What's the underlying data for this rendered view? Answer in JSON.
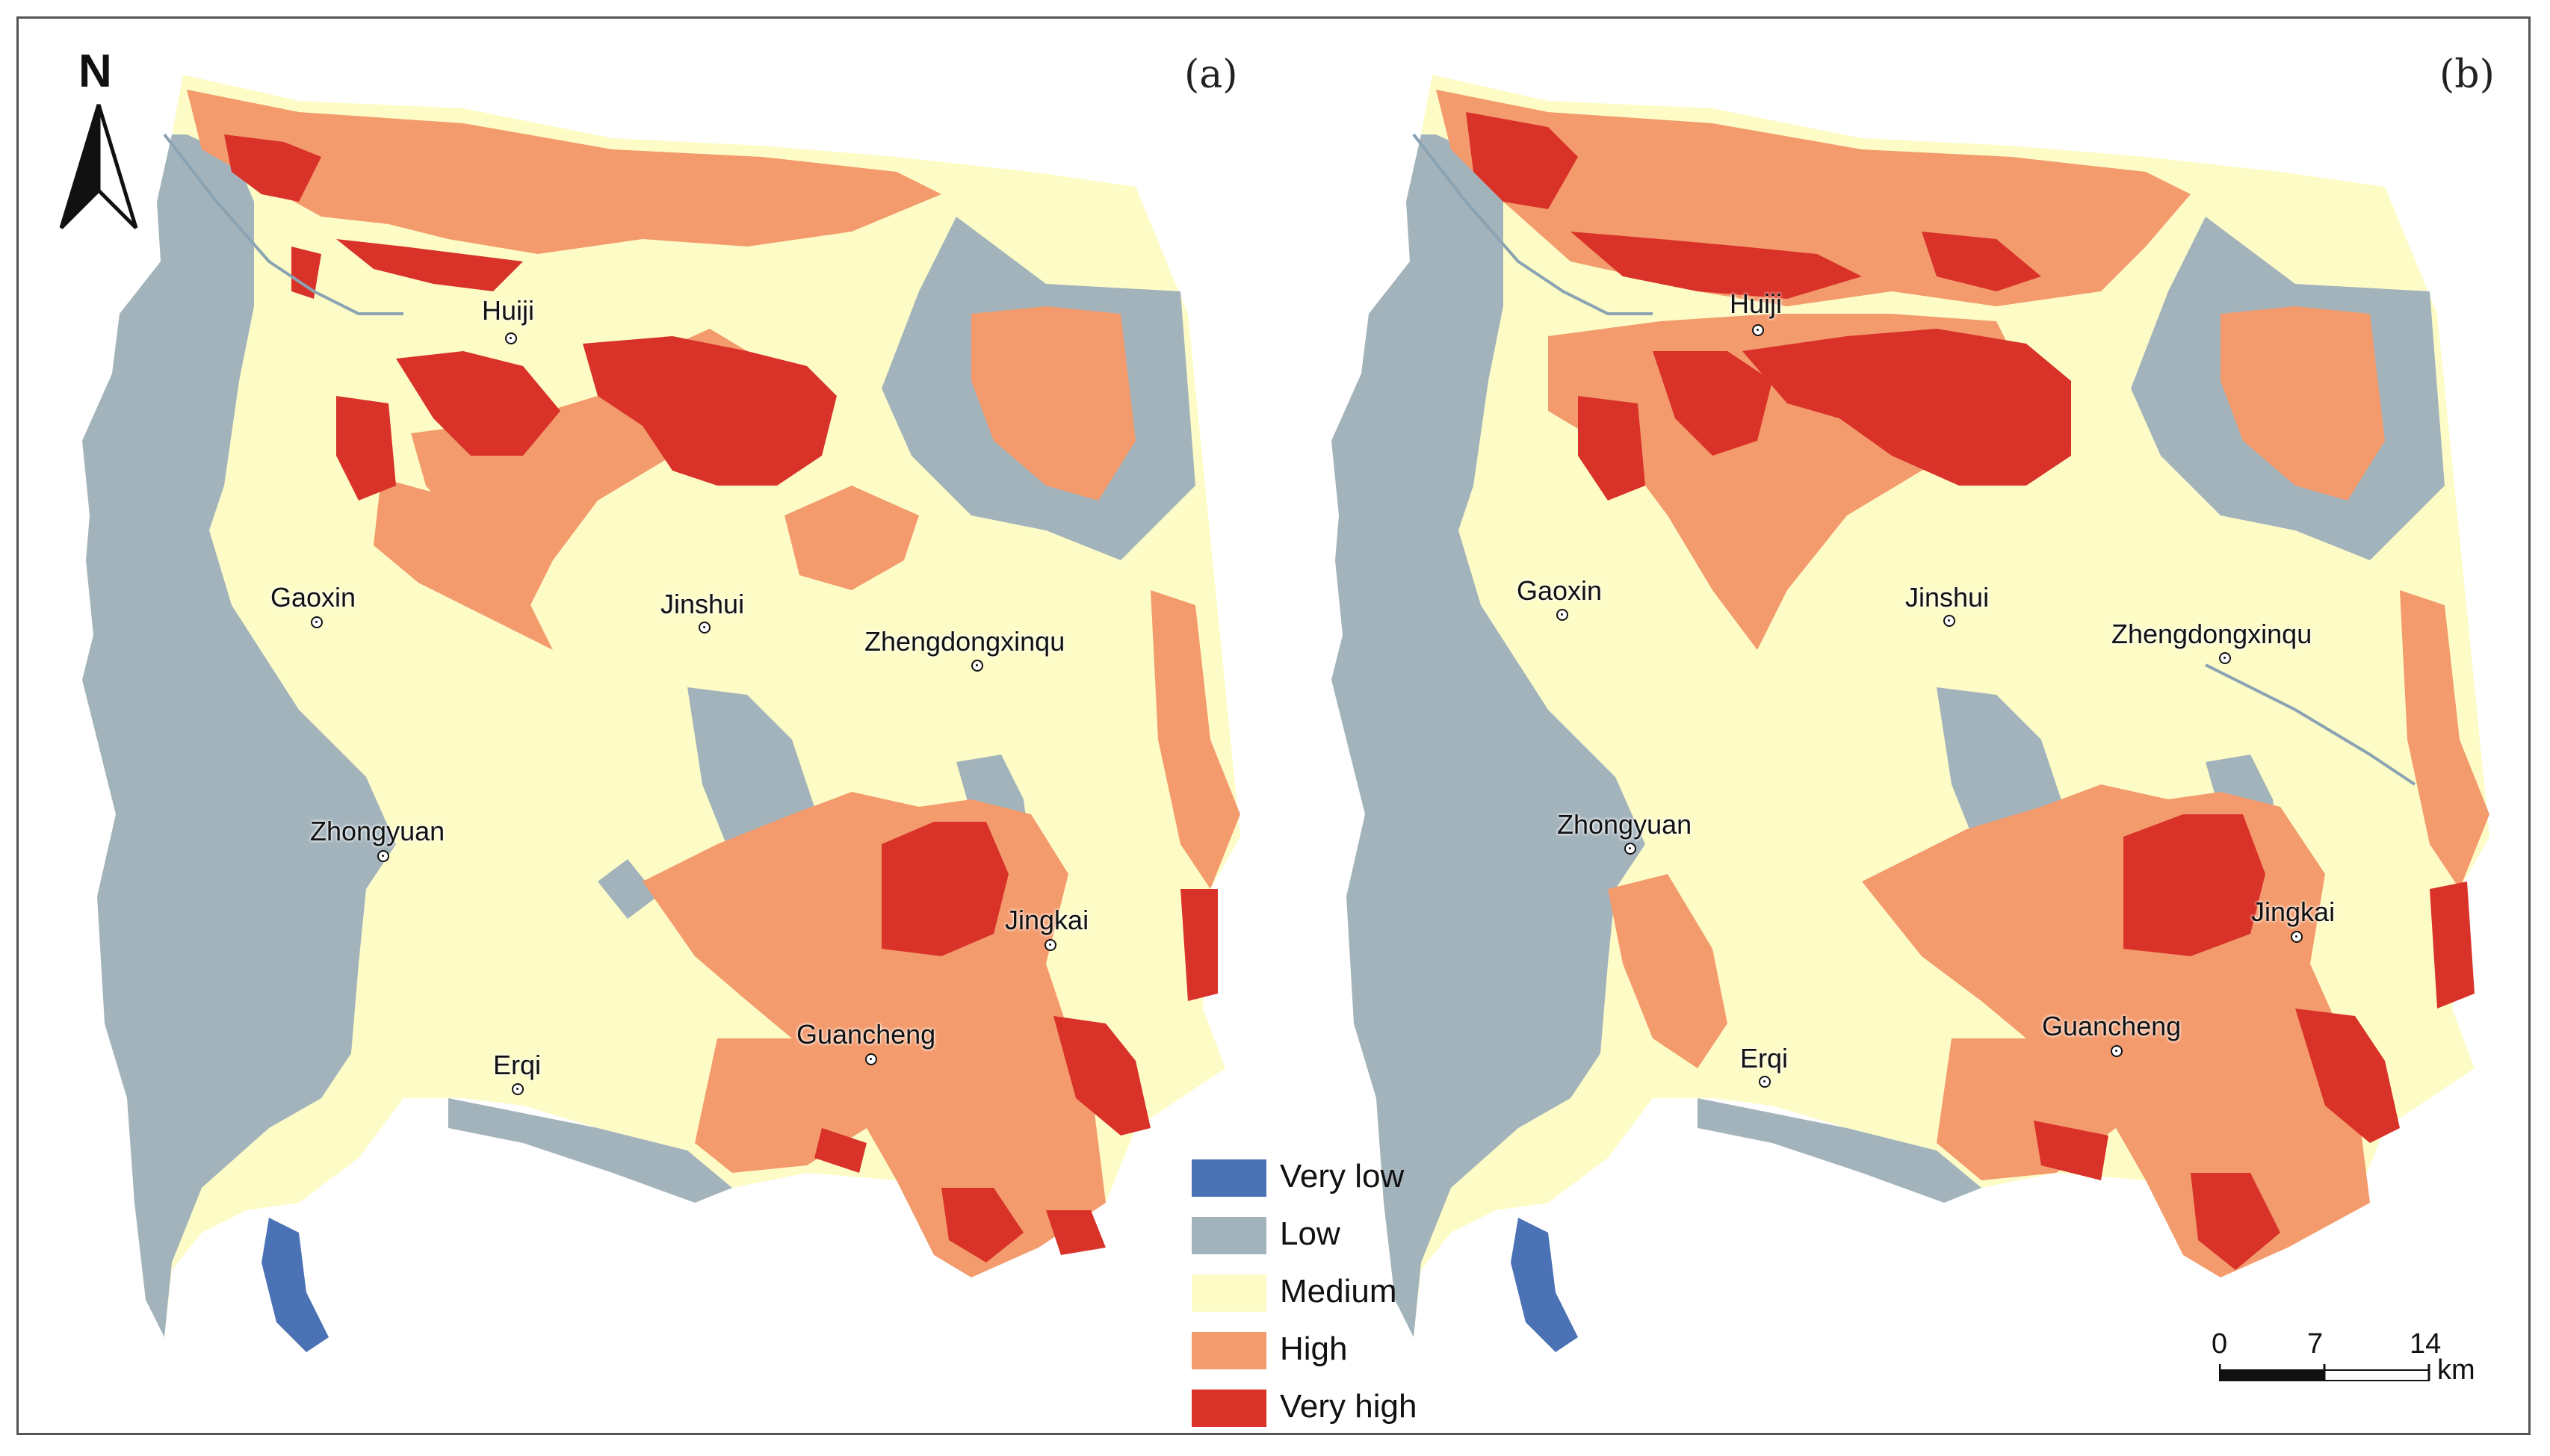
{
  "panels": [
    {
      "label": "(a)",
      "places": [
        {
          "name": "Huiji"
        },
        {
          "name": "Gaoxin"
        },
        {
          "name": "Jinshui"
        },
        {
          "name": "Zhengdongxinqu"
        },
        {
          "name": "Zhongyuan"
        },
        {
          "name": "Jingkai"
        },
        {
          "name": "Guancheng"
        },
        {
          "name": "Erqi"
        }
      ]
    },
    {
      "label": "(b)",
      "places": [
        {
          "name": "Huiji"
        },
        {
          "name": "Gaoxin"
        },
        {
          "name": "Jinshui"
        },
        {
          "name": "Zhengdongxinqu"
        },
        {
          "name": "Zhongyuan"
        },
        {
          "name": "Jingkai"
        },
        {
          "name": "Guancheng"
        },
        {
          "name": "Erqi"
        }
      ]
    }
  ],
  "legend": {
    "items": [
      {
        "label": "Very low",
        "color": "#4a72b5"
      },
      {
        "label": "Low",
        "color": "#a3b3bc"
      },
      {
        "label": "Medium",
        "color": "#fdfcc7"
      },
      {
        "label": "High",
        "color": "#f39b6d"
      },
      {
        "label": "Very high",
        "color": "#d93229"
      }
    ]
  },
  "north_arrow": {
    "label": "N"
  },
  "scale": {
    "ticks": [
      "0",
      "7",
      "14"
    ],
    "unit": "km"
  }
}
